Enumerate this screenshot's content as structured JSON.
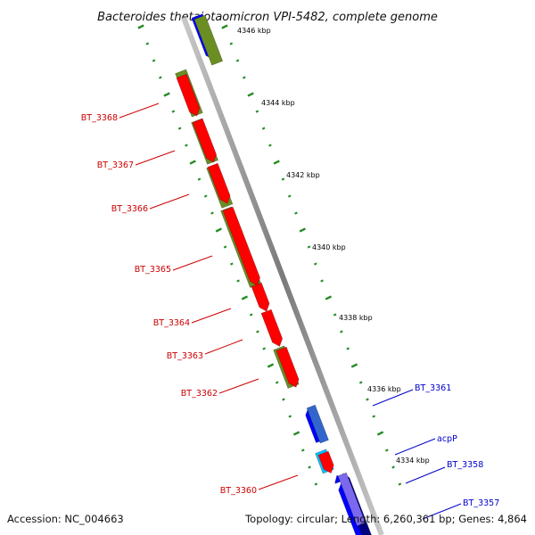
{
  "title": "Bacteroides thetaiotaomicron VPI-5482, complete genome",
  "accession": "Accession: NC_004663",
  "summary": "Topology: circular; Length: 6,260,361 bp; Genes: 4,864",
  "kbp_ticks": [
    "4346 kbp",
    "4344 kbp",
    "4342 kbp",
    "4340 kbp",
    "4338 kbp",
    "4336 kbp",
    "4334 kbp"
  ],
  "genes_left": [
    "BT_3368",
    "BT_3367",
    "BT_3366",
    "BT_3365",
    "BT_3364",
    "BT_3363",
    "BT_3362",
    "BT_3360"
  ],
  "genes_right": [
    "BT_3361",
    "acpP",
    "BT_3358",
    "BT_3357"
  ],
  "colors": {
    "left_label": "#cc0000",
    "right_label": "#0000cc",
    "olive": "#6b8e23",
    "red": "#ff0000",
    "blue": "#0000ff",
    "navy": "#000080",
    "cyan": "#00bfff",
    "orange": "#ff9900",
    "dots": "#228b22",
    "backbone": "#888888"
  }
}
